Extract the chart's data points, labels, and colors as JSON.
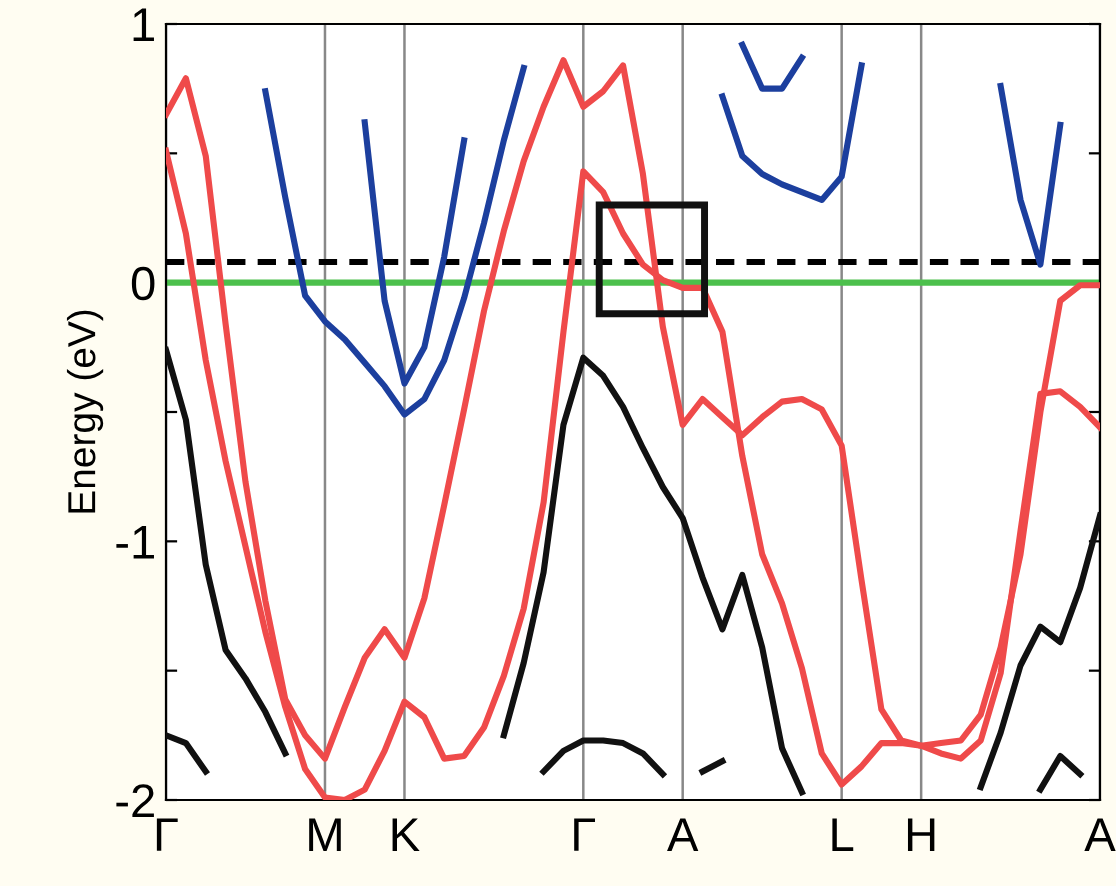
{
  "chart_data": {
    "type": "line",
    "ylabel": "Energy (eV)",
    "categories": [
      "Γ",
      null,
      null,
      null,
      null,
      null,
      null,
      null,
      "M",
      null,
      null,
      null,
      "K",
      null,
      null,
      null,
      null,
      null,
      null,
      null,
      null,
      "Γ",
      null,
      null,
      null,
      null,
      "A",
      null,
      null,
      null,
      null,
      null,
      null,
      null,
      "L",
      null,
      null,
      null,
      "H",
      null,
      null,
      null,
      null,
      null,
      null,
      null,
      null,
      "A"
    ],
    "ylim": [
      -2,
      1
    ],
    "yticks": [
      -2,
      {
        "value": -1.5,
        "label": null
      },
      -1,
      {
        "value": -0.5,
        "label": null
      },
      0,
      {
        "value": 0.5,
        "label": null
      },
      1
    ],
    "grid": "x",
    "legend": false,
    "marker": "none",
    "line_style": "solid",
    "ref_lines": [
      {
        "axis": "y",
        "value": 0,
        "color": "#4cc04c",
        "line_style": "solid"
      },
      {
        "axis": "y",
        "value": 0.08,
        "color": "#000000",
        "line_style": "dashed"
      }
    ],
    "series": [
      {
        "color": "#ef4a4a",
        "values": [
          0.65,
          0.79,
          0.49,
          -0.16,
          -0.77,
          -1.23,
          -1.61,
          -1.75,
          -1.84,
          -1.64,
          -1.45,
          -1.34,
          -1.45,
          -1.22,
          -0.86,
          -0.49,
          -0.11,
          0.2,
          0.47,
          0.68,
          0.86,
          0.68,
          0.74,
          0.84,
          0.42,
          -0.17,
          -0.55,
          -0.45,
          -0.52,
          -0.59,
          -0.52,
          -0.46,
          -0.45,
          -0.49,
          -0.63,
          -1.15,
          -1.65,
          -1.77,
          -1.79,
          -1.82,
          -1.84,
          -1.77,
          -1.51,
          -0.96,
          -0.43,
          -0.42,
          -0.48,
          -0.56
        ]
      },
      {
        "color": "#ef4a4a",
        "values": [
          0.51,
          0.19,
          -0.3,
          -0.69,
          -1.02,
          -1.35,
          -1.64,
          -1.88,
          -1.99,
          -2,
          -1.96,
          -1.81,
          -1.62,
          -1.68,
          -1.84,
          -1.83,
          -1.72,
          -1.52,
          -1.26,
          -0.85,
          -0.19,
          0.43,
          0.35,
          0.19,
          0.07,
          0.01,
          -0.02,
          -0.02,
          -0.19,
          -0.67,
          -1.05,
          -1.24,
          -1.49,
          -1.82,
          -1.94,
          -1.87,
          -1.78,
          -1.78,
          -1.79,
          -1.78,
          -1.77,
          -1.67,
          -1.41,
          -1.05,
          -0.5,
          -0.07,
          -0.01,
          -0.01
        ]
      },
      {
        "color": "#1c3f9e",
        "values": [
          null,
          null,
          null,
          null,
          null,
          0.74,
          0.33,
          -0.05,
          -0.15,
          -0.22,
          -0.31,
          -0.4,
          -0.51,
          -0.45,
          -0.3,
          -0.06,
          0.23,
          0.55,
          0.83,
          null,
          null,
          null,
          null,
          null,
          null,
          null,
          null,
          null,
          null,
          null,
          null,
          null,
          null,
          null,
          null,
          null,
          null,
          null,
          null,
          null,
          null,
          null,
          null,
          null,
          null,
          null,
          null,
          null
        ]
      },
      {
        "color": "#1c3f9e",
        "values": [
          null,
          null,
          null,
          null,
          null,
          null,
          null,
          null,
          null,
          null,
          0.62,
          -0.07,
          -0.39,
          -0.25,
          0.1,
          0.55,
          null,
          null,
          null,
          null,
          null,
          null,
          null,
          null,
          null,
          null,
          null,
          null,
          null,
          null,
          null,
          null,
          null,
          null,
          null,
          null,
          null,
          null,
          null,
          null,
          null,
          null,
          null,
          null,
          null,
          null,
          null,
          null
        ]
      },
      {
        "color": "#1c3f9e",
        "values": [
          null,
          null,
          null,
          null,
          null,
          null,
          null,
          null,
          null,
          null,
          null,
          null,
          null,
          null,
          null,
          null,
          null,
          null,
          null,
          null,
          null,
          null,
          null,
          null,
          null,
          null,
          null,
          null,
          0.72,
          0.49,
          0.42,
          0.38,
          0.35,
          0.32,
          0.41,
          0.84,
          null,
          null,
          null,
          null,
          null,
          null,
          null,
          null,
          null,
          null,
          null,
          null
        ]
      },
      {
        "color": "#1c3f9e",
        "values": [
          null,
          null,
          null,
          null,
          null,
          null,
          null,
          null,
          null,
          null,
          null,
          null,
          null,
          null,
          null,
          null,
          null,
          null,
          null,
          null,
          null,
          null,
          null,
          null,
          null,
          null,
          null,
          null,
          null,
          0.92,
          0.75,
          0.75,
          0.87,
          null,
          null,
          null,
          null,
          null,
          null,
          null,
          null,
          null,
          null,
          null,
          null,
          null,
          null,
          null
        ]
      },
      {
        "color": "#1c3f9e",
        "values": [
          null,
          null,
          null,
          null,
          null,
          null,
          null,
          null,
          null,
          null,
          null,
          null,
          null,
          null,
          null,
          null,
          null,
          null,
          null,
          null,
          null,
          null,
          null,
          null,
          null,
          null,
          null,
          null,
          null,
          null,
          null,
          null,
          null,
          null,
          null,
          null,
          null,
          null,
          null,
          null,
          null,
          null,
          0.76,
          0.32,
          0.07,
          0.61,
          null,
          null
        ]
      },
      {
        "color": "#111111",
        "values": [
          -0.26,
          -0.53,
          -1.09,
          -1.42,
          -1.53,
          -1.66,
          -1.82,
          null,
          null,
          null,
          null,
          null,
          null,
          null,
          null,
          null,
          null,
          null,
          null,
          null,
          null,
          null,
          null,
          null,
          null,
          null,
          null,
          null,
          null,
          null,
          null,
          null,
          null,
          null,
          null,
          null,
          null,
          null,
          null,
          null,
          null,
          null,
          null,
          null,
          null,
          null,
          null,
          null
        ]
      },
      {
        "color": "#111111",
        "values": [
          -1.75,
          -1.78,
          -1.89,
          null,
          null,
          null,
          null,
          null,
          null,
          null,
          null,
          null,
          null,
          null,
          null,
          null,
          null,
          null,
          null,
          null,
          null,
          null,
          null,
          null,
          null,
          null,
          null,
          null,
          null,
          null,
          null,
          null,
          null,
          null,
          null,
          null,
          null,
          null,
          null,
          null,
          null,
          null,
          null,
          null,
          null,
          null,
          null,
          null
        ]
      },
      {
        "color": "#111111",
        "values": [
          null,
          null,
          null,
          null,
          null,
          null,
          null,
          null,
          null,
          null,
          null,
          null,
          null,
          null,
          null,
          null,
          null,
          -1.75,
          -1.47,
          -1.12,
          -0.55,
          -0.29,
          -0.36,
          -0.48,
          -0.64,
          -0.79,
          -0.91,
          -1.14,
          -1.34,
          -1.13,
          -1.41,
          -1.8,
          -1.97,
          null,
          null,
          null,
          null,
          null,
          null,
          null,
          null,
          null,
          null,
          null,
          null,
          null,
          null,
          null
        ]
      },
      {
        "color": "#111111",
        "values": [
          null,
          null,
          null,
          null,
          null,
          null,
          null,
          null,
          null,
          null,
          null,
          null,
          null,
          null,
          null,
          null,
          null,
          null,
          null,
          -1.89,
          -1.81,
          -1.77,
          -1.77,
          -1.78,
          -1.82,
          -1.9,
          null,
          null,
          null,
          null,
          null,
          null,
          null,
          null,
          null,
          null,
          null,
          null,
          null,
          null,
          null,
          null,
          null,
          null,
          null,
          null,
          null,
          null
        ]
      },
      {
        "color": "#111111",
        "values": [
          null,
          null,
          null,
          null,
          null,
          null,
          null,
          null,
          null,
          null,
          null,
          null,
          null,
          null,
          null,
          null,
          null,
          null,
          null,
          null,
          null,
          null,
          null,
          null,
          null,
          null,
          null,
          -1.89,
          -1.85,
          null,
          null,
          null,
          null,
          null,
          null,
          null,
          null,
          null,
          null,
          null,
          null,
          null,
          null,
          null,
          null,
          null,
          null,
          null
        ]
      },
      {
        "color": "#111111",
        "values": [
          null,
          null,
          null,
          null,
          null,
          null,
          null,
          null,
          null,
          null,
          null,
          null,
          null,
          null,
          null,
          null,
          null,
          null,
          null,
          null,
          null,
          null,
          null,
          null,
          null,
          null,
          null,
          null,
          null,
          null,
          null,
          null,
          null,
          null,
          null,
          null,
          null,
          null,
          null,
          null,
          null,
          -1.95,
          -1.74,
          -1.48,
          -1.33,
          -1.39,
          -1.18,
          -0.9
        ]
      },
      {
        "color": "#111111",
        "values": [
          null,
          null,
          null,
          null,
          null,
          null,
          null,
          null,
          null,
          null,
          null,
          null,
          null,
          null,
          null,
          null,
          null,
          null,
          null,
          null,
          null,
          null,
          null,
          null,
          null,
          null,
          null,
          null,
          null,
          null,
          null,
          null,
          null,
          null,
          null,
          null,
          null,
          null,
          null,
          null,
          null,
          null,
          null,
          null,
          -1.96,
          -1.83,
          -1.9,
          null
        ]
      }
    ]
  }
}
